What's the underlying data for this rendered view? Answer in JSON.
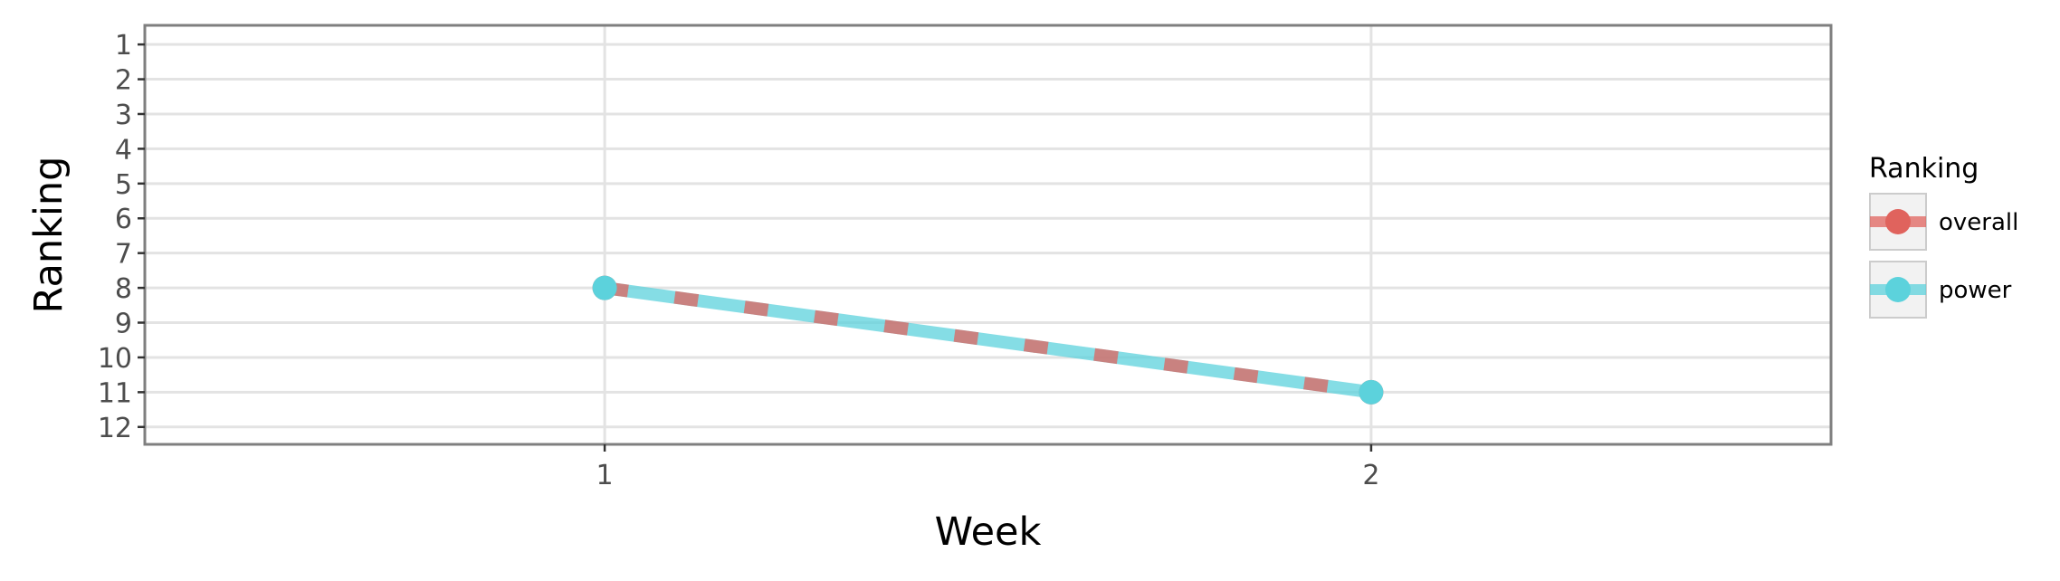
{
  "chart_data": {
    "type": "line",
    "xlabel": "Week",
    "ylabel": "Ranking",
    "x": [
      1,
      2
    ],
    "x_ticks": [
      "1",
      "2"
    ],
    "xlim": [
      0.4,
      2.6
    ],
    "y_ticks": [
      "1",
      "2",
      "3",
      "4",
      "5",
      "6",
      "7",
      "8",
      "9",
      "10",
      "11",
      "12"
    ],
    "ylim": [
      12.5,
      0.45
    ],
    "y_reversed": true,
    "grid": true,
    "legend": {
      "title": "Ranking",
      "placement": "right",
      "entries": [
        "overall",
        "power"
      ]
    },
    "series": [
      {
        "name": "overall",
        "values": [
          8,
          11
        ],
        "color": "#e0635d",
        "dashed": true
      },
      {
        "name": "power",
        "values": [
          8,
          11
        ],
        "color": "#5cd2dc",
        "dashed": false
      }
    ]
  }
}
